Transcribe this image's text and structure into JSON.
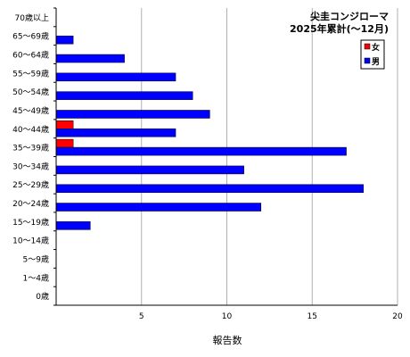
{
  "chart_data": {
    "type": "bar",
    "orientation": "horizontal",
    "title": [
      "尖圭コンジローマ",
      "2025年累計(～12月)"
    ],
    "xlabel": "報告数",
    "ylabel": "",
    "xlim": [
      0,
      20
    ],
    "x_ticks": [
      5,
      10,
      15,
      20
    ],
    "grid": true,
    "legend_position": "top-right",
    "categories": [
      "70歳以上",
      "65～69歳",
      "60～64歳",
      "55～59歳",
      "50～54歳",
      "45～49歳",
      "40～44歳",
      "35～39歳",
      "30～34歳",
      "25～29歳",
      "20～24歳",
      "15～19歳",
      "10～14歳",
      "5～9歳",
      "1～4歳",
      "0歳"
    ],
    "series": [
      {
        "name": "女",
        "color": "#ff0000",
        "values": [
          0,
          0,
          0,
          0,
          0,
          0,
          1,
          1,
          0,
          0,
          0,
          0,
          0,
          0,
          0,
          0
        ]
      },
      {
        "name": "男",
        "color": "#0000ff",
        "values": [
          0,
          1,
          4,
          7,
          8,
          9,
          7,
          17,
          11,
          18,
          12,
          2,
          0,
          0,
          0,
          0
        ]
      }
    ]
  }
}
